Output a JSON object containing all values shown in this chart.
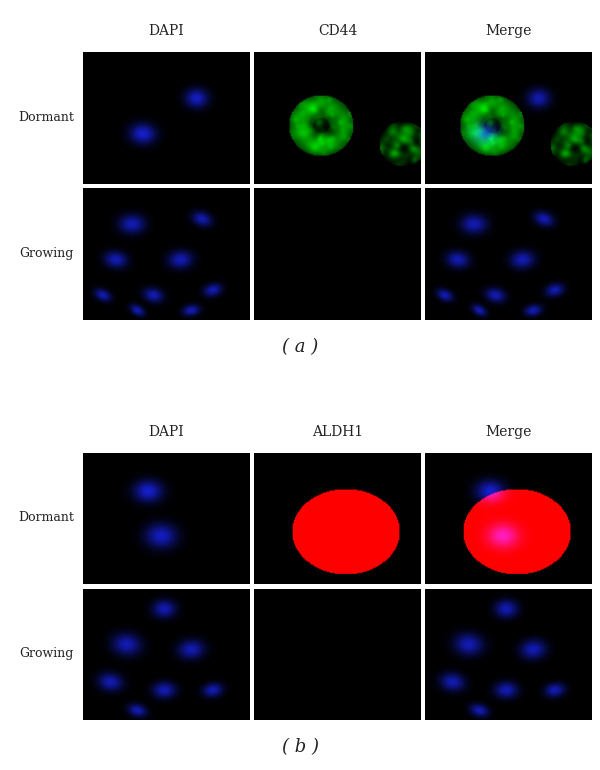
{
  "panel_a_cols": [
    "DAPI",
    "CD44",
    "Merge"
  ],
  "panel_b_cols": [
    "DAPI",
    "ALDH1",
    "Merge"
  ],
  "row_labels": [
    "Dormant",
    "Growing"
  ],
  "panel_labels": [
    "( a )",
    "( b )"
  ],
  "panel_label_fontsize": 13,
  "col_header_fontsize": 10,
  "row_label_fontsize": 9
}
